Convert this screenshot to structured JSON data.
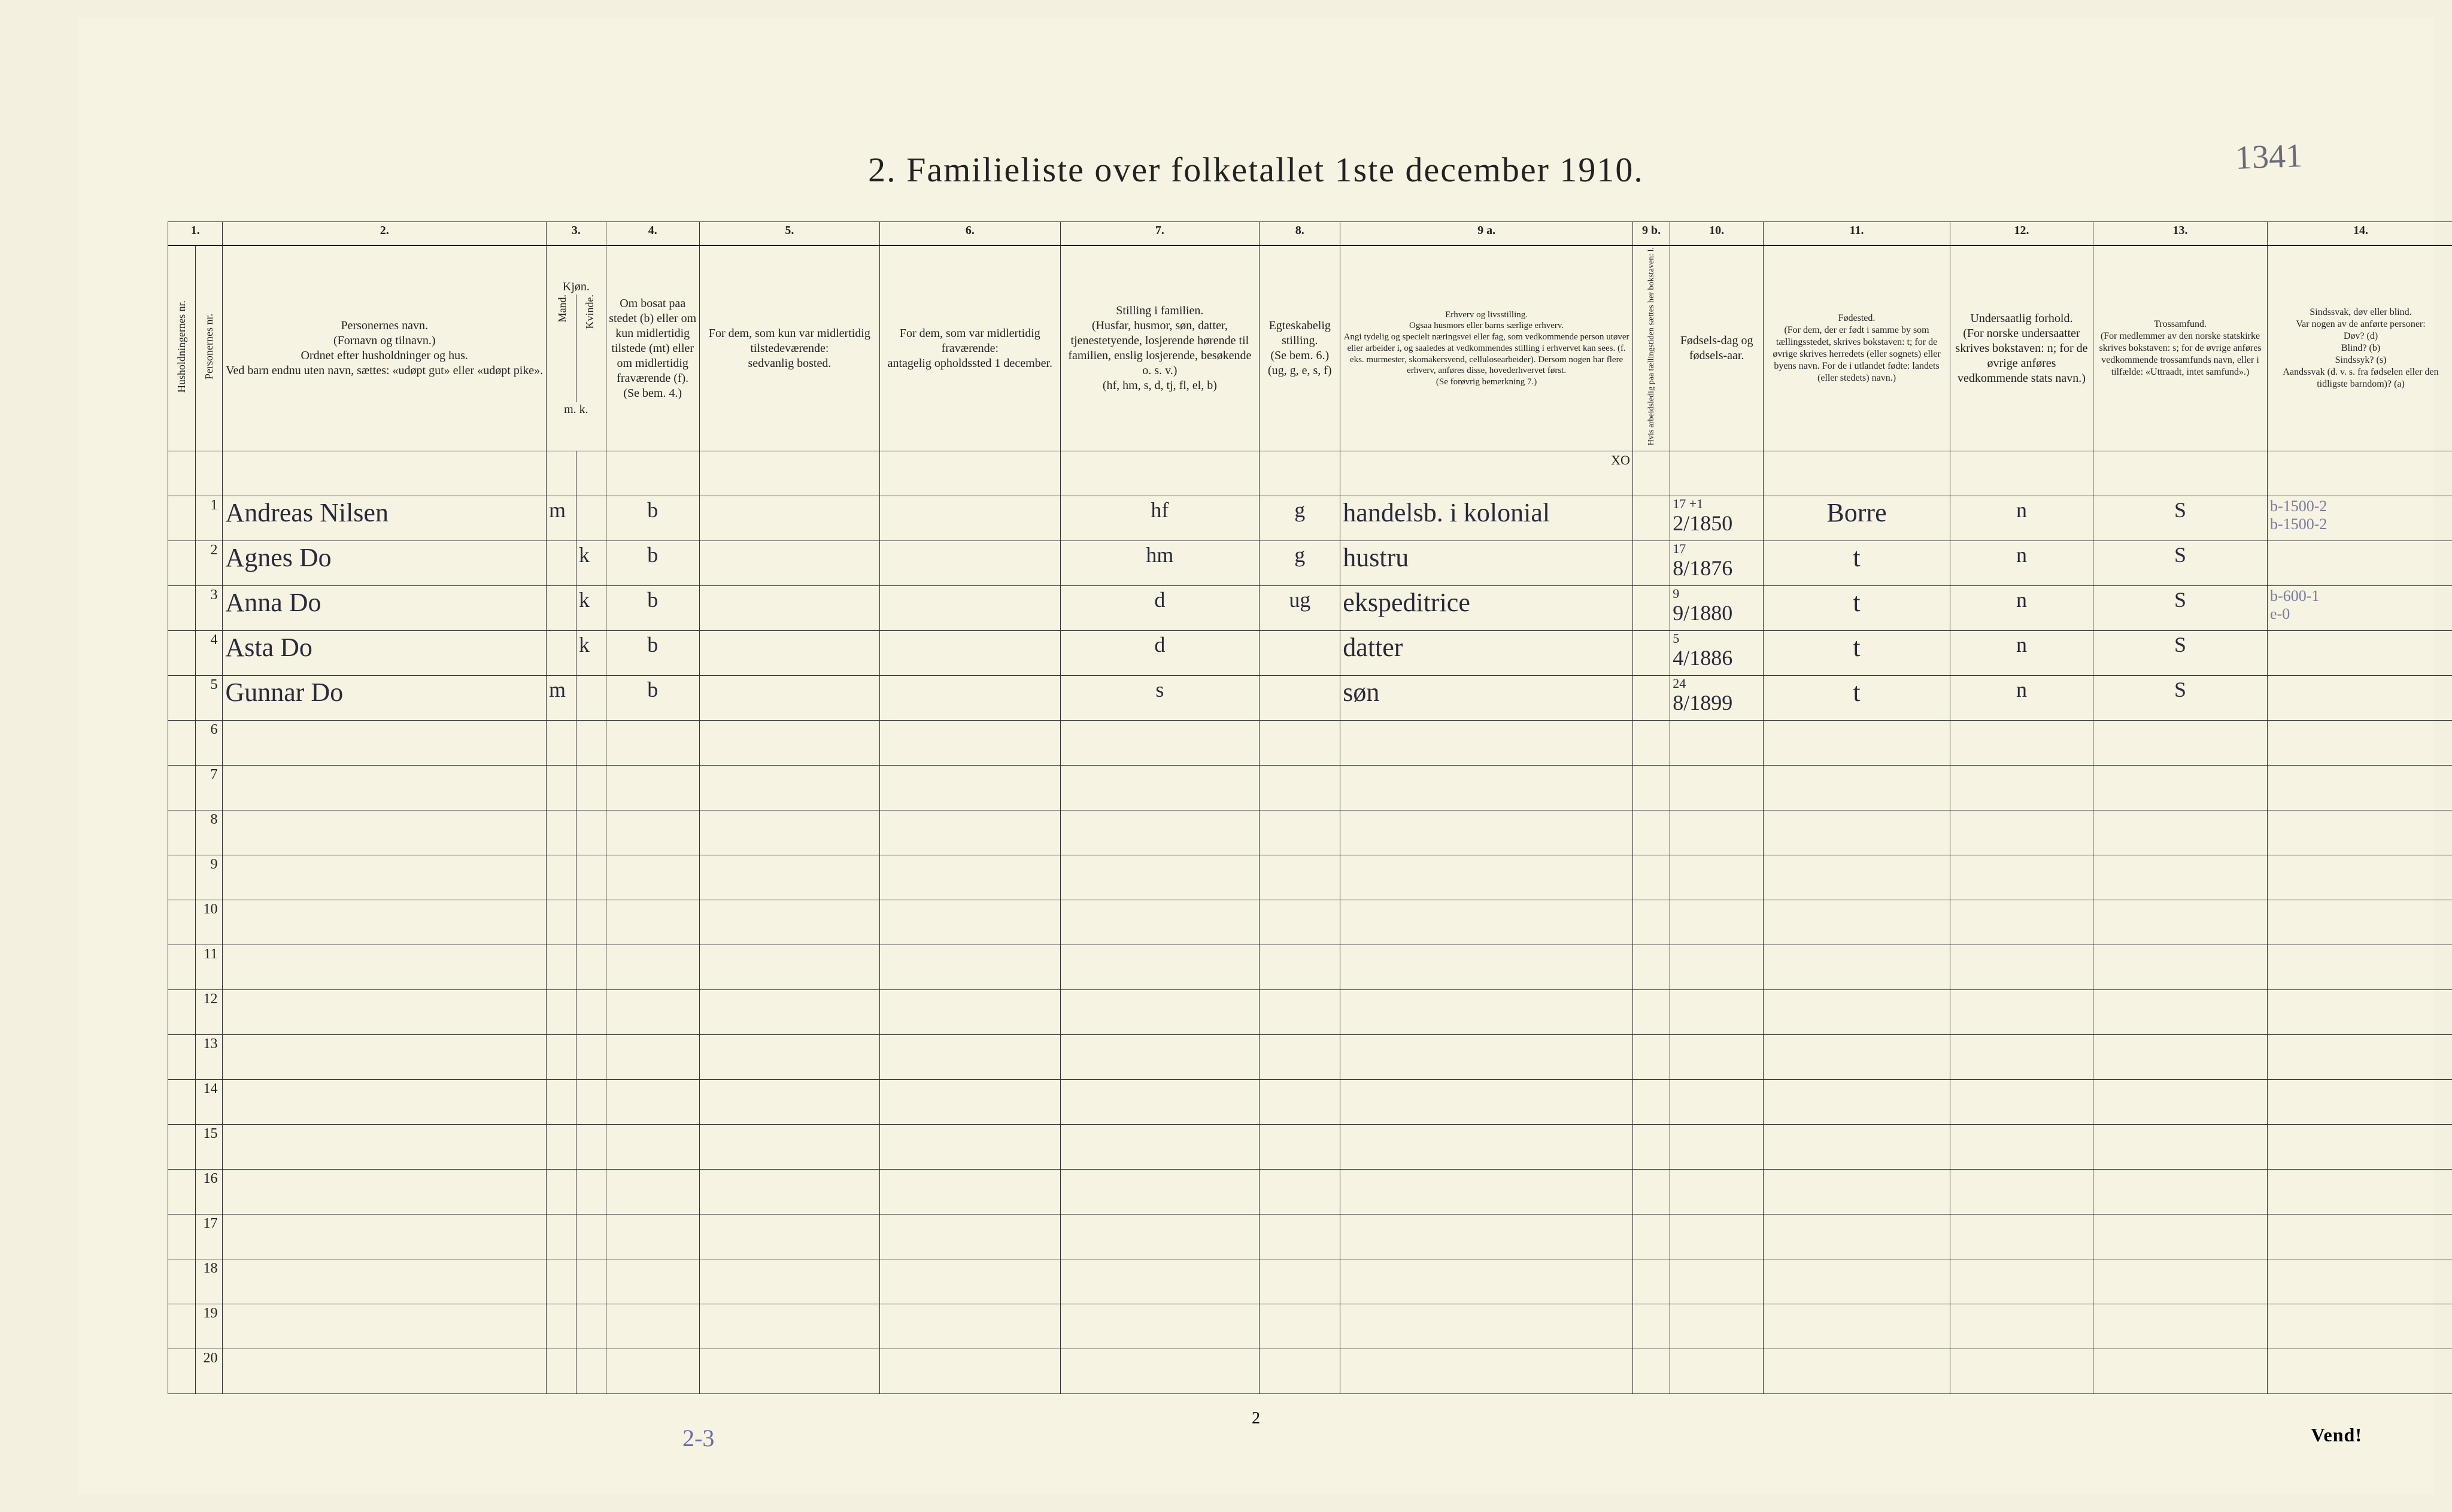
{
  "title": "2.  Familieliste over folketallet 1ste december 1910.",
  "top_annotation": "1341",
  "page_number": "2",
  "footer": "Vend!",
  "below_table_annotation": "2-3",
  "colors": {
    "paper": "#f7f3e3",
    "ink": "#222222",
    "handwriting": "#2a2a3a",
    "pencil": "#7a7aa0",
    "border": "#333333"
  },
  "column_numbers": [
    "1.",
    "2.",
    "3.",
    "4.",
    "5.",
    "6.",
    "7.",
    "8.",
    "9 a.",
    "9 b.",
    "10.",
    "11.",
    "12.",
    "13.",
    "14."
  ],
  "headers": {
    "c1a": "Husholdningernes nr.",
    "c1b": "Personernes nr.",
    "c2": "Personernes navn.\n(Fornavn og tilnavn.)\nOrdnet efter husholdninger og hus.\nVed barn endnu uten navn, sættes: «udøpt gut» eller «udøpt pike».",
    "c3": "Kjøn.",
    "c3a": "Mand.",
    "c3b": "Kvinde.",
    "c3sub": "m.  k.",
    "c4": "Om bosat paa stedet (b) eller om kun midlertidig tilstede (mt) eller om midlertidig fraværende (f).\n(Se bem. 4.)",
    "c5": "For dem, som kun var midlertidig tilstedeværende:\nsedvanlig bosted.",
    "c6": "For dem, som var midlertidig fraværende:\nantagelig opholdssted 1 december.",
    "c7": "Stilling i familien.\n(Husfar, husmor, søn, datter, tjenestetyende, losjerende hørende til familien, enslig losjerende, besøkende o. s. v.)\n(hf, hm, s, d, tj, fl, el, b)",
    "c8": "Egteskabelig stilling.\n(Se bem. 6.)\n(ug, g, e, s, f)",
    "c9a": "Erhverv og livsstilling.\nOgsaa husmors eller barns særlige erhverv.\nAngi tydelig og specielt næringsvei eller fag, som vedkommende person utøver eller arbeider i, og saaledes at vedkommendes stilling i erhvervet kan sees. (f. eks. murmester, skomakersvend, cellulosearbeider). Dersom nogen har flere erhverv, anføres disse, hovederhvervet først.\n(Se forøvrig bemerkning 7.)",
    "c9b": "Hvis arbeidsledig paa tællingstiden sættes her bokstaven: l.",
    "c10": "Fødsels-dag og fødsels-aar.",
    "c11": "Fødested.\n(For dem, der er født i samme by som tællingsstedet, skrives bokstaven: t; for de øvrige skrives herredets (eller sognets) eller byens navn. For de i utlandet fødte: landets (eller stedets) navn.)",
    "c12": "Undersaatlig forhold.\n(For norske undersaatter skrives bokstaven: n; for de øvrige anføres vedkommende stats navn.)",
    "c13": "Trossamfund.\n(For medlemmer av den norske statskirke skrives bokstaven: s; for de øvrige anføres vedkommende trossamfunds navn, eller i tilfælde: «Uttraadt, intet samfund».)",
    "c14": "Sindssvak, døv eller blind.\nVar nogen av de anførte personer:\nDøv? (d)\nBlind? (b)\nSindssyk? (s)\nAandssvak (d. v. s. fra fødselen eller den tidligste barndom)? (a)"
  },
  "xo_annotation": "XO",
  "rows": [
    {
      "n": "1",
      "name": "Andreas Nilsen",
      "sex_m": "m",
      "sex_k": "",
      "res": "b",
      "c5": "",
      "c6": "",
      "fam": "hf",
      "mar": "g",
      "occ": "handelsb. i kolonial",
      "c9b": "",
      "birth_top": "17 +1",
      "birth": "2/1850",
      "birthplace": "Borre",
      "nat": "n",
      "rel": "S",
      "c14": "b-1500-2\nb-1500-2"
    },
    {
      "n": "2",
      "name": "Agnes Do",
      "sex_m": "",
      "sex_k": "k",
      "res": "b",
      "c5": "",
      "c6": "",
      "fam": "hm",
      "mar": "g",
      "occ": "hustru",
      "c9b": "",
      "birth_top": "17",
      "birth": "8/1876",
      "birthplace": "t",
      "nat": "n",
      "rel": "S",
      "c14": ""
    },
    {
      "n": "3",
      "name": "Anna Do",
      "sex_m": "",
      "sex_k": "k",
      "res": "b",
      "c5": "",
      "c6": "",
      "fam": "d",
      "mar": "ug",
      "occ": "ekspeditrice",
      "c9b": "",
      "birth_top": "9",
      "birth": "9/1880",
      "birthplace": "t",
      "nat": "n",
      "rel": "S",
      "c14": "b-600-1\ne-0"
    },
    {
      "n": "4",
      "name": "Asta Do",
      "sex_m": "",
      "sex_k": "k",
      "res": "b",
      "c5": "",
      "c6": "",
      "fam": "d",
      "mar": "",
      "occ": "datter",
      "c9b": "",
      "birth_top": "5",
      "birth": "4/1886",
      "birthplace": "t",
      "nat": "n",
      "rel": "S",
      "c14": ""
    },
    {
      "n": "5",
      "name": "Gunnar Do",
      "sex_m": "m",
      "sex_k": "",
      "res": "b",
      "c5": "",
      "c6": "",
      "fam": "s",
      "mar": "",
      "occ": "søn",
      "c9b": "",
      "birth_top": "24",
      "birth": "8/1899",
      "birthplace": "t",
      "nat": "n",
      "rel": "S",
      "c14": ""
    }
  ],
  "empty_rows": [
    "6",
    "7",
    "8",
    "9",
    "10",
    "11",
    "12",
    "13",
    "14",
    "15",
    "16",
    "17",
    "18",
    "19",
    "20"
  ]
}
